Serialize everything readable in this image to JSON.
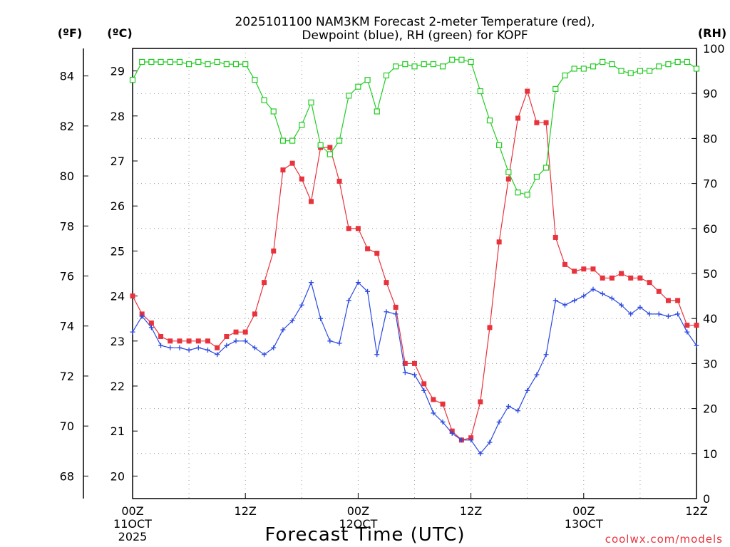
{
  "chart_data": {
    "type": "line",
    "title_line1": "2025101100 NAM3KM Forecast 2-meter Temperature (red),",
    "title_line2": "Dewpoint (blue), RH (green) for KOPF",
    "xlabel": "Forecast Time (UTC)",
    "unit_labels": {
      "fahrenheit": "(ºF)",
      "celsius": "(ºC)",
      "rh": "(RH)"
    },
    "credit": "coolwx.com/models",
    "hours_range": [
      0,
      60
    ],
    "celsius_range": [
      19.5,
      29.5
    ],
    "rh_range": [
      0,
      100
    ],
    "fahrenheit_ticks": [
      "68",
      "70",
      "72",
      "74",
      "76",
      "78",
      "80",
      "82",
      "84"
    ],
    "celsius_ticks": [
      "20",
      "21",
      "22",
      "23",
      "24",
      "25",
      "26",
      "27",
      "28",
      "29"
    ],
    "rh_ticks": [
      "0",
      "10",
      "20",
      "30",
      "40",
      "50",
      "60",
      "70",
      "80",
      "90",
      "100"
    ],
    "x_ticks": [
      {
        "hour": 0,
        "time": "00Z",
        "date": "11OCT",
        "year": "2025"
      },
      {
        "hour": 12,
        "time": "12Z",
        "date": "",
        "year": ""
      },
      {
        "hour": 24,
        "time": "00Z",
        "date": "12OCT",
        "year": ""
      },
      {
        "hour": 36,
        "time": "12Z",
        "date": "",
        "year": ""
      },
      {
        "hour": 48,
        "time": "00Z",
        "date": "13OCT",
        "year": ""
      },
      {
        "hour": 60,
        "time": "12Z",
        "date": "",
        "year": ""
      }
    ],
    "series": [
      {
        "name": "2-meter Temperature",
        "unit": "C",
        "color": "#e8323c",
        "marker": "filled-square",
        "values": [
          24.0,
          23.6,
          23.4,
          23.1,
          23.0,
          23.0,
          23.0,
          23.0,
          23.0,
          22.85,
          23.1,
          23.2,
          23.2,
          23.6,
          24.3,
          25.0,
          26.8,
          26.95,
          26.6,
          26.1,
          27.3,
          27.3,
          26.55,
          25.5,
          25.5,
          25.05,
          24.95,
          24.3,
          23.75,
          22.5,
          22.5,
          22.05,
          21.7,
          21.6,
          21.0,
          20.8,
          20.85,
          21.65,
          23.3,
          25.2,
          26.6,
          27.95,
          28.55,
          27.85,
          27.85,
          25.3,
          24.7,
          24.55,
          24.6,
          24.6,
          24.4,
          24.4,
          24.5,
          24.4,
          24.4,
          24.3,
          24.1,
          23.9,
          23.9,
          23.35,
          23.35
        ]
      },
      {
        "name": "Dewpoint",
        "unit": "C",
        "color": "#2a48e0",
        "marker": "plus",
        "values": [
          23.2,
          23.55,
          23.3,
          22.9,
          22.85,
          22.85,
          22.8,
          22.85,
          22.8,
          22.7,
          22.9,
          23.0,
          23.0,
          22.85,
          22.7,
          22.85,
          23.25,
          23.45,
          23.8,
          24.3,
          23.5,
          23.0,
          22.95,
          23.9,
          24.3,
          24.1,
          22.7,
          23.65,
          23.6,
          22.3,
          22.25,
          21.9,
          21.4,
          21.2,
          20.95,
          20.8,
          20.8,
          20.5,
          20.75,
          21.2,
          21.55,
          21.45,
          21.9,
          22.25,
          22.7,
          23.9,
          23.8,
          23.9,
          24.0,
          24.15,
          24.05,
          23.95,
          23.8,
          23.6,
          23.75,
          23.6,
          23.6,
          23.55,
          23.6,
          23.2,
          22.9
        ]
      },
      {
        "name": "RH",
        "unit": "%",
        "color": "#22cc22",
        "marker": "open-square",
        "values": [
          93,
          97,
          97,
          97,
          97,
          97,
          96.5,
          97,
          96.5,
          97,
          96.5,
          96.5,
          96.5,
          93,
          88.5,
          86,
          79.5,
          79.5,
          83,
          88,
          78.5,
          76.5,
          79.5,
          89.5,
          91.5,
          93,
          86,
          94,
          96,
          96.5,
          96,
          96.5,
          96.5,
          96,
          97.5,
          97.5,
          97,
          90.5,
          84,
          78.5,
          72.5,
          68,
          67.5,
          71.5,
          73.5,
          91,
          94,
          95.5,
          95.5,
          96,
          97,
          96.5,
          95,
          94.5,
          95,
          95,
          96,
          96.5,
          97,
          97,
          95.5
        ]
      }
    ]
  }
}
